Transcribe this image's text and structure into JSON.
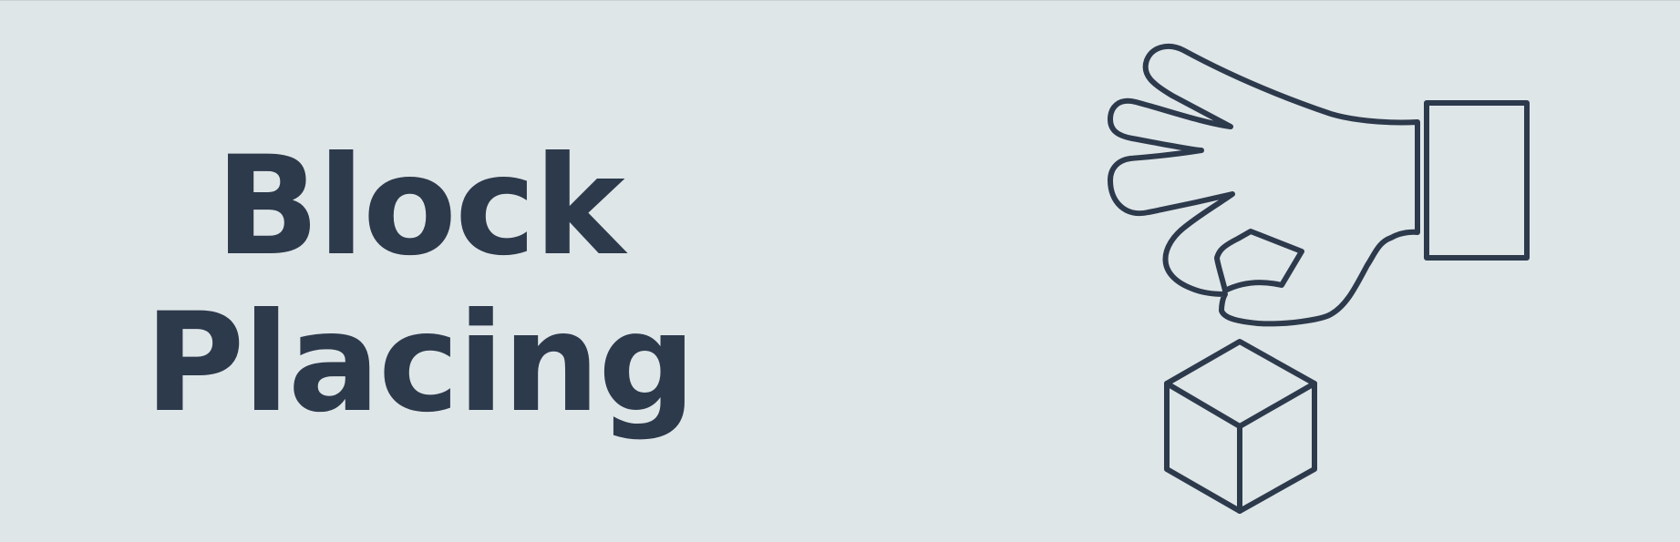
{
  "title": {
    "line1": "Block",
    "line2": "Placing"
  },
  "illustration": {
    "hand_icon": "hand-placing-icon",
    "cube_icon": "cube-icon",
    "stroke_color": "#2d3a4c"
  },
  "colors": {
    "background": "#dfe6e8",
    "text": "#2d3a4c"
  }
}
